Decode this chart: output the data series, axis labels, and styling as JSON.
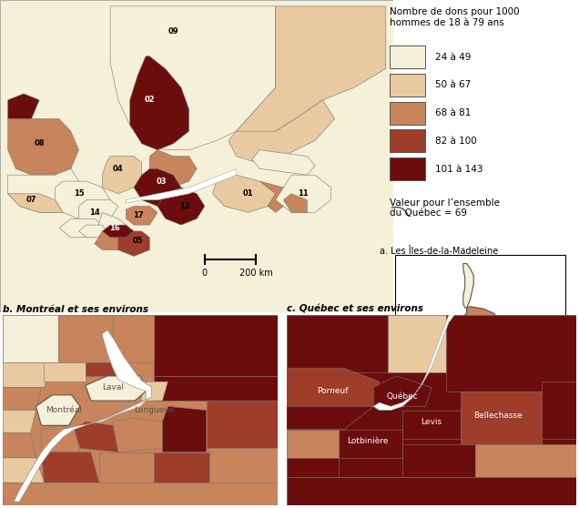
{
  "legend_title": "Nombre de dons pour 1000\nhommes de 18 à 79 ans",
  "legend_labels": [
    "24 à 49",
    "50 à 67",
    "68 à 81",
    "82 à 100",
    "101 à 143"
  ],
  "legend_colors": [
    "#f5f0d8",
    "#e8c9a0",
    "#c8845a",
    "#9e3d2a",
    "#6b0d0d"
  ],
  "valeur_label": "Valeur pour l’ensemble\ndu Québec = 69",
  "scale_label_left": "0",
  "scale_label_right": "200 km",
  "inset_a_label": "a. Les Îles-de-la-Madeleine",
  "inset_b_label": "b. Montréal et ses environs",
  "inset_c_label": "c. Québec et ses environs",
  "bg_color": "#ffffff"
}
